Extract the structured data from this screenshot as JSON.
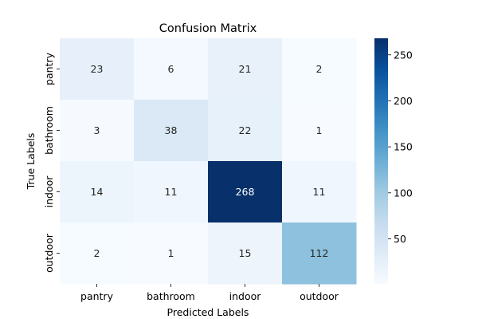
{
  "chart_data": {
    "type": "heatmap",
    "title": "Confusion Matrix",
    "xlabel": "Predicted Labels",
    "ylabel": "True Labels",
    "x_categories": [
      "pantry",
      "bathroom",
      "indoor",
      "outdoor"
    ],
    "y_categories": [
      "pantry",
      "bathroom",
      "indoor",
      "outdoor"
    ],
    "values": [
      [
        23,
        6,
        21,
        2
      ],
      [
        3,
        38,
        22,
        1
      ],
      [
        14,
        11,
        268,
        11
      ],
      [
        2,
        1,
        15,
        112
      ]
    ],
    "colormap": "Blues",
    "color_range": [
      1,
      268
    ],
    "colorbar_ticks": [
      50,
      100,
      150,
      200,
      250
    ],
    "colorbar": true,
    "grid": false
  }
}
